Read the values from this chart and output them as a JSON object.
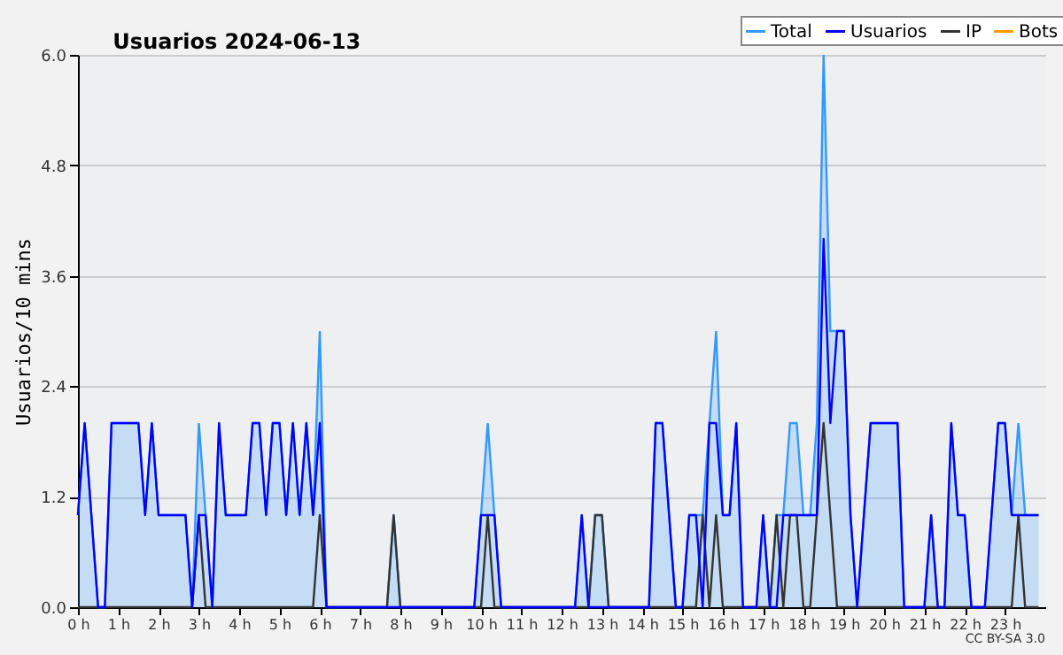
{
  "chart_data": {
    "type": "line",
    "title": "Usuarios  2024-06-13",
    "ylabel": "Usuarios/10 mins",
    "x": [
      0,
      0.167,
      0.333,
      0.5,
      0.667,
      0.833,
      1,
      1.167,
      1.333,
      1.5,
      1.667,
      1.833,
      2,
      2.167,
      2.333,
      2.5,
      2.667,
      2.833,
      3,
      3.167,
      3.333,
      3.5,
      3.667,
      3.833,
      4,
      4.167,
      4.333,
      4.5,
      4.667,
      4.833,
      5,
      5.167,
      5.333,
      5.5,
      5.667,
      5.833,
      6,
      6.167,
      6.333,
      6.5,
      6.667,
      6.833,
      7,
      7.167,
      7.333,
      7.5,
      7.667,
      7.833,
      8,
      8.167,
      8.333,
      8.5,
      8.667,
      8.833,
      9,
      9.167,
      9.333,
      9.5,
      9.667,
      9.833,
      10,
      10.167,
      10.333,
      10.5,
      10.667,
      10.833,
      11,
      11.167,
      11.333,
      11.5,
      11.667,
      11.833,
      12,
      12.167,
      12.333,
      12.5,
      12.667,
      12.833,
      13,
      13.167,
      13.333,
      13.5,
      13.667,
      13.833,
      14,
      14.167,
      14.333,
      14.5,
      14.667,
      14.833,
      15,
      15.167,
      15.333,
      15.5,
      15.667,
      15.833,
      16,
      16.167,
      16.333,
      16.5,
      16.667,
      16.833,
      17,
      17.167,
      17.333,
      17.5,
      17.667,
      17.833,
      18,
      18.167,
      18.333,
      18.5,
      18.667,
      18.833,
      19,
      19.167,
      19.333,
      19.5,
      19.667,
      19.833,
      20,
      20.167,
      20.333,
      20.5,
      20.667,
      20.833,
      21,
      21.167,
      21.333,
      21.5,
      21.667,
      21.833,
      22,
      22.167,
      22.333,
      22.5,
      22.667,
      22.833,
      23,
      23.167,
      23.333,
      23.5,
      23.667,
      23.833
    ],
    "series": [
      {
        "name": "Total",
        "type": "area",
        "color": "#3399ff",
        "values": [
          1,
          2,
          1,
          0,
          0,
          2,
          2,
          2,
          2,
          2,
          1,
          2,
          1,
          1,
          1,
          1,
          1,
          0,
          2,
          1,
          0,
          2,
          1,
          1,
          1,
          1,
          2,
          2,
          1,
          2,
          2,
          1,
          2,
          1,
          2,
          1,
          3,
          0,
          0,
          0,
          0,
          0,
          0,
          0,
          0,
          0,
          0,
          1,
          0,
          0,
          0,
          0,
          0,
          0,
          0,
          0,
          0,
          0,
          0,
          0,
          1,
          2,
          1,
          0,
          0,
          0,
          0,
          0,
          0,
          0,
          0,
          0,
          0,
          0,
          0,
          1,
          0,
          1,
          1,
          0,
          0,
          0,
          0,
          0,
          0,
          0,
          2,
          2,
          1,
          0,
          0,
          1,
          1,
          1,
          2,
          3,
          1,
          1,
          2,
          0,
          0,
          0,
          1,
          0,
          1,
          1,
          2,
          2,
          1,
          1,
          2,
          6,
          3,
          3,
          3,
          1,
          0,
          1,
          2,
          2,
          2,
          2,
          2,
          0,
          0,
          0,
          0,
          1,
          0,
          0,
          2,
          1,
          1,
          0,
          0,
          0,
          1,
          2,
          2,
          1,
          2,
          1,
          1,
          1
        ]
      },
      {
        "name": "Usuarios",
        "color": "#0000ff",
        "values": [
          1,
          2,
          1,
          0,
          0,
          2,
          2,
          2,
          2,
          2,
          1,
          2,
          1,
          1,
          1,
          1,
          1,
          0,
          1,
          1,
          0,
          2,
          1,
          1,
          1,
          1,
          2,
          2,
          1,
          2,
          2,
          1,
          2,
          1,
          2,
          1,
          2,
          0,
          0,
          0,
          0,
          0,
          0,
          0,
          0,
          0,
          0,
          0,
          0,
          0,
          0,
          0,
          0,
          0,
          0,
          0,
          0,
          0,
          0,
          0,
          1,
          1,
          1,
          0,
          0,
          0,
          0,
          0,
          0,
          0,
          0,
          0,
          0,
          0,
          0,
          1,
          0,
          0,
          0,
          0,
          0,
          0,
          0,
          0,
          0,
          0,
          2,
          2,
          1,
          0,
          0,
          1,
          1,
          0,
          2,
          2,
          1,
          1,
          2,
          0,
          0,
          0,
          1,
          0,
          0,
          1,
          1,
          1,
          1,
          1,
          1,
          4,
          2,
          3,
          3,
          1,
          0,
          1,
          2,
          2,
          2,
          2,
          2,
          0,
          0,
          0,
          0,
          1,
          0,
          0,
          2,
          1,
          1,
          0,
          0,
          0,
          1,
          2,
          2,
          1,
          1,
          1,
          1,
          1
        ]
      },
      {
        "name": "IP",
        "color": "#333333",
        "values": [
          0,
          0,
          0,
          0,
          0,
          0,
          0,
          0,
          0,
          0,
          0,
          0,
          0,
          0,
          0,
          0,
          0,
          0,
          1,
          0,
          0,
          0,
          0,
          0,
          0,
          0,
          0,
          0,
          0,
          0,
          0,
          0,
          0,
          0,
          0,
          0,
          1,
          0,
          0,
          0,
          0,
          0,
          0,
          0,
          0,
          0,
          0,
          1,
          0,
          0,
          0,
          0,
          0,
          0,
          0,
          0,
          0,
          0,
          0,
          0,
          0,
          1,
          0,
          0,
          0,
          0,
          0,
          0,
          0,
          0,
          0,
          0,
          0,
          0,
          0,
          0,
          0,
          1,
          1,
          0,
          0,
          0,
          0,
          0,
          0,
          0,
          0,
          0,
          0,
          0,
          0,
          0,
          0,
          1,
          0,
          1,
          0,
          0,
          0,
          0,
          0,
          0,
          0,
          0,
          1,
          0,
          1,
          1,
          0,
          0,
          1,
          2,
          1,
          0,
          0,
          0,
          0,
          0,
          0,
          0,
          0,
          0,
          0,
          0,
          0,
          0,
          0,
          0,
          0,
          0,
          0,
          0,
          0,
          0,
          0,
          0,
          0,
          0,
          0,
          0,
          1,
          0,
          0,
          0
        ]
      },
      {
        "name": "Bots",
        "color": "#ff9900",
        "values": [
          null,
          null,
          null,
          null,
          null,
          null,
          null,
          null,
          null,
          null,
          null,
          null,
          null,
          null,
          null,
          null,
          null,
          null,
          null,
          null,
          null,
          null,
          null,
          null,
          null,
          null,
          null,
          null,
          null,
          null,
          null,
          null,
          null,
          null,
          null,
          null,
          null,
          null,
          null,
          null,
          null,
          null,
          null,
          null,
          null,
          null,
          null,
          null,
          null,
          null,
          null,
          null,
          null,
          null,
          null,
          null,
          null,
          null,
          null,
          null,
          null,
          null,
          null,
          null,
          null,
          null,
          null,
          null,
          null,
          null,
          null,
          null,
          null,
          null,
          null,
          null,
          null,
          null,
          null,
          null,
          null,
          null,
          null,
          null,
          null,
          null,
          null,
          null,
          null,
          null,
          null,
          null,
          null,
          null,
          null,
          null,
          null,
          null,
          null,
          null,
          null,
          null,
          null,
          null,
          null,
          null,
          null,
          null,
          null,
          null,
          null,
          null,
          null,
          null,
          null,
          null,
          null,
          null,
          null,
          null,
          null,
          null,
          null,
          null,
          null,
          null,
          null,
          null,
          null,
          null,
          null,
          null,
          null,
          null,
          null,
          null,
          null,
          null,
          null,
          null,
          null,
          null,
          null,
          null
        ]
      }
    ],
    "xlim": [
      0,
      24
    ],
    "xticks": [
      {
        "value": 0,
        "label": "0 h"
      },
      {
        "value": 1,
        "label": "1 h"
      },
      {
        "value": 2,
        "label": "2 h"
      },
      {
        "value": 3,
        "label": "3 h"
      },
      {
        "value": 4,
        "label": "4 h"
      },
      {
        "value": 5,
        "label": "5 h"
      },
      {
        "value": 6,
        "label": "6 h"
      },
      {
        "value": 7,
        "label": "7 h"
      },
      {
        "value": 8,
        "label": "8 h"
      },
      {
        "value": 9,
        "label": "9 h"
      },
      {
        "value": 10,
        "label": "10 h"
      },
      {
        "value": 11,
        "label": "11 h"
      },
      {
        "value": 12,
        "label": "12 h"
      },
      {
        "value": 13,
        "label": "13 h"
      },
      {
        "value": 14,
        "label": "14 h"
      },
      {
        "value": 15,
        "label": "15 h"
      },
      {
        "value": 16,
        "label": "16 h"
      },
      {
        "value": 17,
        "label": "17 h"
      },
      {
        "value": 18,
        "label": "18 h"
      },
      {
        "value": 19,
        "label": "19 h"
      },
      {
        "value": 20,
        "label": "20 h"
      },
      {
        "value": 21,
        "label": "21 h"
      },
      {
        "value": 22,
        "label": "22 h"
      },
      {
        "value": 23,
        "label": "23 h"
      }
    ],
    "ylim": [
      0,
      6
    ],
    "yticks": [
      {
        "value": 0,
        "label": "0.0"
      },
      {
        "value": 1.2,
        "label": "1.2"
      },
      {
        "value": 2.4,
        "label": "2.4"
      },
      {
        "value": 3.6,
        "label": "3.6"
      },
      {
        "value": 4.8,
        "label": "4.8"
      },
      {
        "value": 6,
        "label": "6.0"
      }
    ],
    "grid": "y",
    "legend": "top right",
    "annotations": [
      "CC BY-SA 3.0"
    ]
  }
}
